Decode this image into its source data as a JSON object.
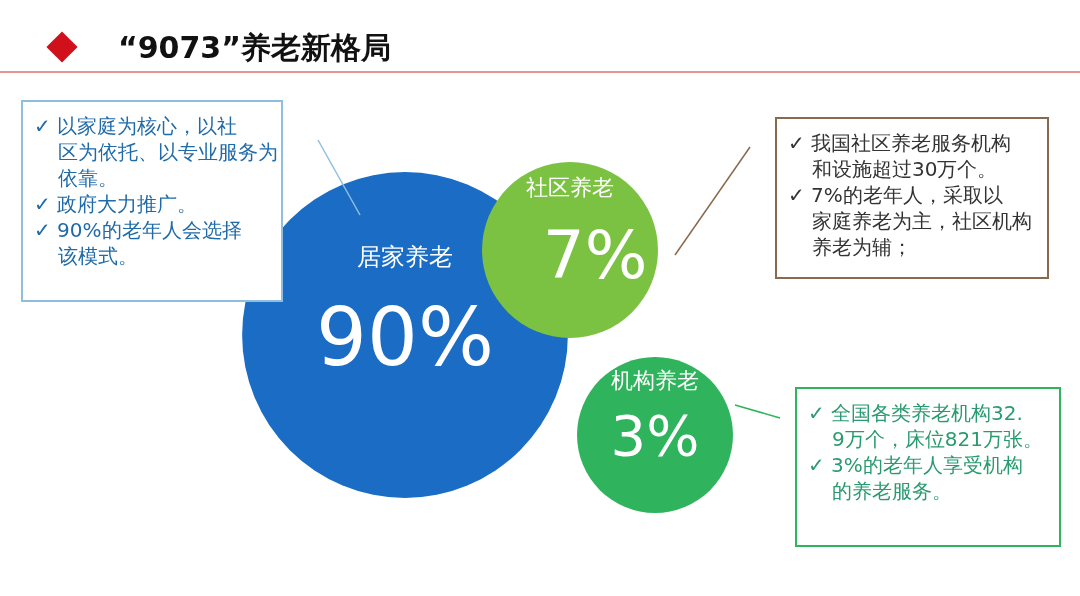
{
  "chart_data": {
    "type": "other",
    "title": "“9073”养老新格局",
    "categories": [
      "居家养老",
      "社区养老",
      "机构养老"
    ],
    "values": [
      90,
      7,
      3
    ],
    "value_labels": [
      "90%",
      "7%",
      "3%"
    ],
    "colors": [
      "#1a6cc4",
      "#7cc242",
      "#2fb35c"
    ],
    "annotations": [
      {
        "text": "✓ 以家庭为核心，以社区为依托、以专业服务为依靠。",
        "x": "居家养老"
      },
      {
        "text": "✓ 政府大力推广。",
        "x": "居家养老"
      },
      {
        "text": "✓ 90%的老年人会选择该模式。",
        "x": "居家养老"
      },
      {
        "text": "✓ 我国社区养老服务机构和设施超过30万个。",
        "x": "社区养老"
      },
      {
        "text": "✓ 7%的老年人，采取以家庭养老为主，社区机构养老为辅；",
        "x": "社区养老"
      },
      {
        "text": "✓ 全国各类养老机构32.9万个，床位821万张。",
        "x": "机构养老"
      },
      {
        "text": "✓ 3%的老年人享受机构的养老服务。",
        "x": "机构养老"
      }
    ]
  }
}
